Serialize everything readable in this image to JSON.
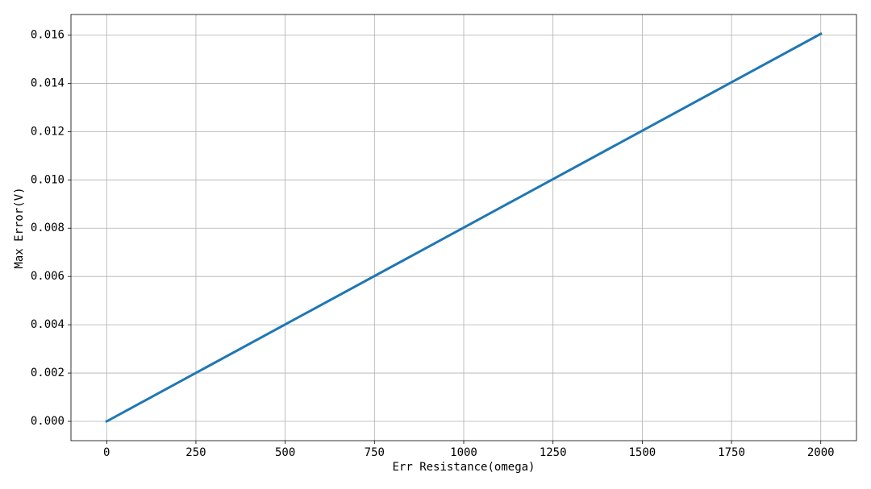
{
  "chart_data": {
    "type": "line",
    "x_label": "Err Resistance(omega)",
    "y_label": "Max Error(V)",
    "x": [
      0,
      2000
    ],
    "series": [
      {
        "name": "Max Error",
        "color": "#1f77b4",
        "values": [
          0,
          0.01605
        ]
      }
    ],
    "xlim": [
      -100,
      2100
    ],
    "ylim": [
      -0.0008,
      0.01685
    ],
    "xticks": [
      0,
      250,
      500,
      750,
      1000,
      1250,
      1500,
      1750,
      2000
    ],
    "yticks": [
      {
        "value": 0,
        "label": "0.000"
      },
      {
        "value": 0.002,
        "label": "0.002"
      },
      {
        "value": 0.004,
        "label": "0.004"
      },
      {
        "value": 0.006,
        "label": "0.006"
      },
      {
        "value": 0.008,
        "label": "0.008"
      },
      {
        "value": 0.01,
        "label": "0.010"
      },
      {
        "value": 0.012,
        "label": "0.012"
      },
      {
        "value": 0.014,
        "label": "0.014"
      },
      {
        "value": 0.016,
        "label": "0.016"
      }
    ],
    "grid": true
  }
}
